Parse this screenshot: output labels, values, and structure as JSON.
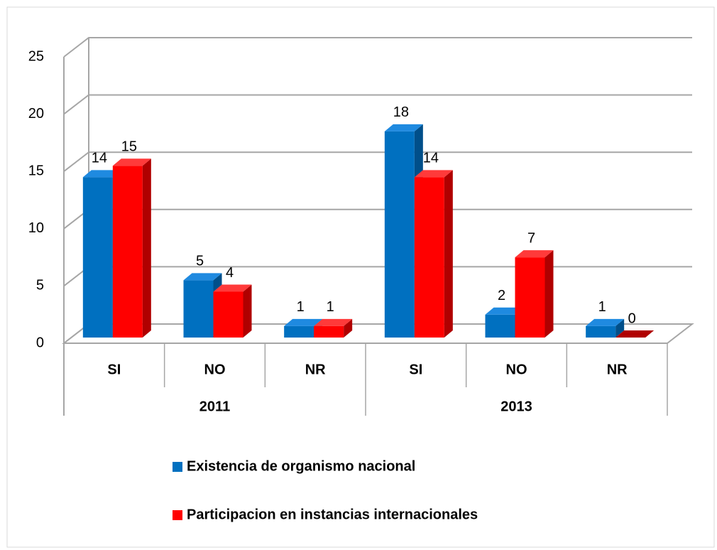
{
  "chart_data": {
    "type": "bar3d",
    "categories": [
      "SI",
      "NO",
      "NR",
      "SI",
      "NO",
      "NR"
    ],
    "groups": [
      "2011",
      "2013"
    ],
    "series": [
      {
        "name": "Existencia de organismo nacional",
        "color": "#0070c0",
        "values": [
          14,
          5,
          1,
          18,
          2,
          1
        ]
      },
      {
        "name": "Participacion en instancias internacionales",
        "color": "#ff0000",
        "values": [
          15,
          4,
          1,
          14,
          7,
          0
        ]
      }
    ],
    "ylim": [
      0,
      25
    ],
    "yticks": [
      0,
      5,
      10,
      15,
      20,
      25
    ],
    "grid": true
  }
}
